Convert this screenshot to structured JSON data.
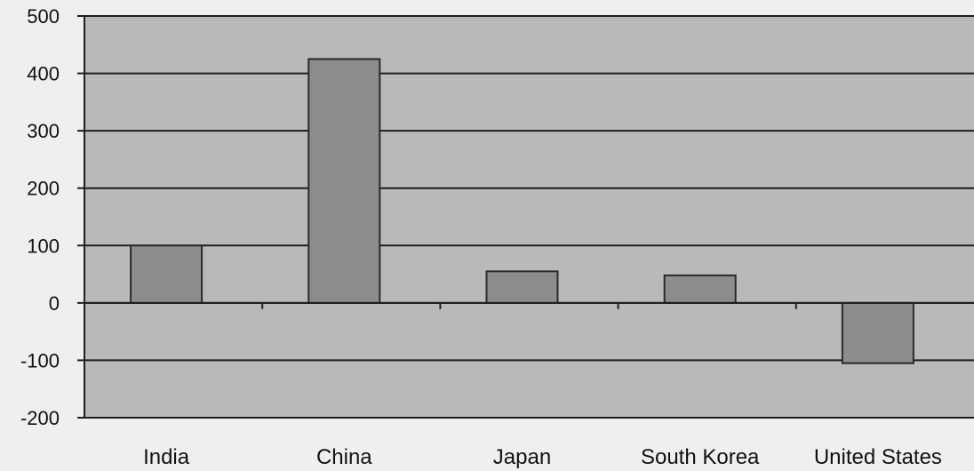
{
  "chart_data": {
    "type": "bar",
    "categories": [
      "India",
      "China",
      "Japan",
      "South Korea",
      "United States"
    ],
    "values": [
      100,
      425,
      55,
      48,
      -105
    ],
    "title": "",
    "xlabel": "",
    "ylabel": "",
    "ylim": [
      -200,
      500
    ],
    "yticks": [
      "500",
      "400",
      "300",
      "200",
      "100",
      "0",
      "-100",
      "-200"
    ],
    "grid": true,
    "legend": "none",
    "colors": {
      "bar": "#8c8c8c",
      "bar_outline": "#2a2a2a",
      "plot_background": "#b9b9b9",
      "gridline": "#1e1e1e",
      "page_background": "#efefef"
    }
  }
}
